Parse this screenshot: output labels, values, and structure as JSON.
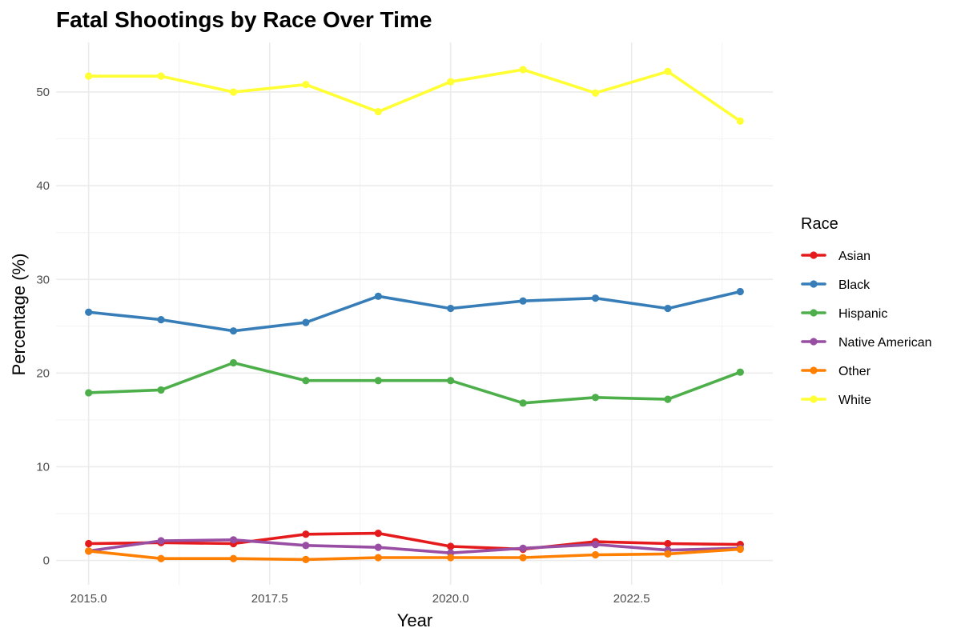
{
  "chart_data": {
    "type": "line",
    "title": "Fatal Shootings by Race Over Time",
    "xlabel": "Year",
    "ylabel": "Percentage (%)",
    "xlim": [
      2014.55,
      2024.45
    ],
    "ylim": [
      -2.6,
      55.3
    ],
    "x_ticks": [
      2015.0,
      2017.5,
      2020.0,
      2022.5
    ],
    "x_tick_labels": [
      "2015.0",
      "2017.5",
      "2020.0",
      "2022.5"
    ],
    "y_ticks": [
      0,
      10,
      20,
      30,
      40,
      50
    ],
    "y_tick_labels": [
      "0",
      "10",
      "20",
      "30",
      "40",
      "50"
    ],
    "x_minor_ticks": [
      2016.25,
      2018.75,
      2021.25,
      2023.75
    ],
    "y_minor_ticks": [
      5,
      15,
      25,
      35,
      45
    ],
    "grid": true,
    "legend_position": "right",
    "legend_title": "Race",
    "x": [
      2015,
      2016,
      2017,
      2018,
      2019,
      2020,
      2021,
      2022,
      2023,
      2024
    ],
    "series": [
      {
        "name": "Asian",
        "color": "#e41a1c",
        "values": [
          1.8,
          1.9,
          1.8,
          2.8,
          2.9,
          1.5,
          1.2,
          2.0,
          1.8,
          1.7
        ]
      },
      {
        "name": "Black",
        "color": "#377eb8",
        "values": [
          26.5,
          25.7,
          24.5,
          25.4,
          28.2,
          26.9,
          27.7,
          28.0,
          26.9,
          28.7
        ]
      },
      {
        "name": "Hispanic",
        "color": "#4daf4a",
        "values": [
          17.9,
          18.2,
          21.1,
          19.2,
          19.2,
          19.2,
          16.8,
          17.4,
          17.2,
          20.1
        ]
      },
      {
        "name": "Native American",
        "color": "#984ea3",
        "values": [
          1.0,
          2.1,
          2.2,
          1.6,
          1.4,
          0.8,
          1.3,
          1.7,
          1.1,
          1.3
        ]
      },
      {
        "name": "Other",
        "color": "#ff7f00",
        "values": [
          1.0,
          0.2,
          0.2,
          0.1,
          0.3,
          0.3,
          0.3,
          0.6,
          0.7,
          1.2
        ]
      },
      {
        "name": "White",
        "color": "#ffff33",
        "values": [
          51.7,
          51.7,
          50.0,
          50.8,
          47.9,
          51.1,
          52.4,
          49.9,
          52.2,
          46.9
        ]
      }
    ]
  }
}
